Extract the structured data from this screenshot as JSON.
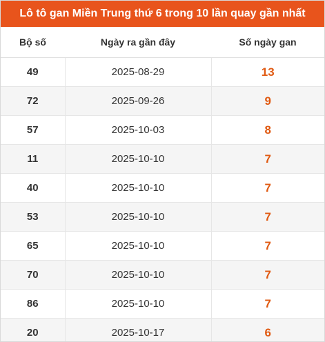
{
  "title": "Lô tô gan Miền Trung thứ 6 trong 10 lần quay gần nhất",
  "headers": {
    "number": "Bộ số",
    "date": "Ngày ra gần đây",
    "days": "Số ngày gan"
  },
  "rows": [
    {
      "number": "49",
      "date": "2025-08-29",
      "days": "13"
    },
    {
      "number": "72",
      "date": "2025-09-26",
      "days": "9"
    },
    {
      "number": "57",
      "date": "2025-10-03",
      "days": "8"
    },
    {
      "number": "11",
      "date": "2025-10-10",
      "days": "7"
    },
    {
      "number": "40",
      "date": "2025-10-10",
      "days": "7"
    },
    {
      "number": "53",
      "date": "2025-10-10",
      "days": "7"
    },
    {
      "number": "65",
      "date": "2025-10-10",
      "days": "7"
    },
    {
      "number": "70",
      "date": "2025-10-10",
      "days": "7"
    },
    {
      "number": "86",
      "date": "2025-10-10",
      "days": "7"
    },
    {
      "number": "20",
      "date": "2025-10-17",
      "days": "6"
    }
  ],
  "colors": {
    "title_bg": "#e8541c",
    "days_text": "#e05a12",
    "stripe": "#f5f5f5"
  }
}
